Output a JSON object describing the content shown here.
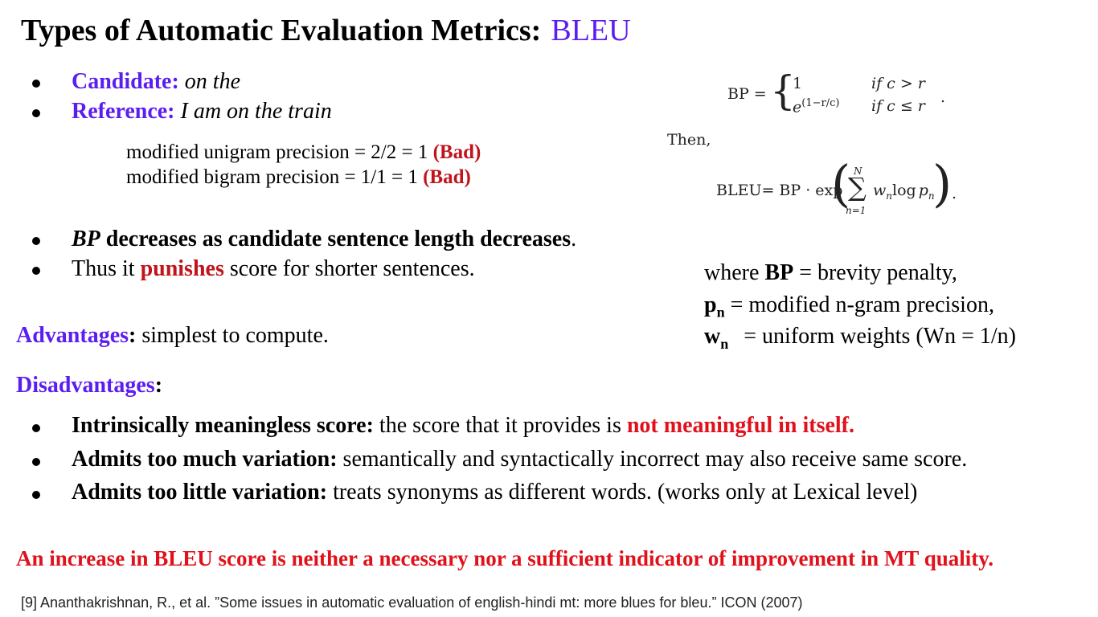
{
  "title": {
    "main": "Types of Automatic Evaluation Metrics:",
    "accent": "BLEU"
  },
  "examples": {
    "candidate_label": "Candidate:",
    "candidate_text": "on the",
    "reference_label": "Reference:",
    "reference_text": "I am on the train",
    "unigram": "modified unigram precision = 2/2 = 1",
    "unigram_tag": "(Bad)",
    "bigram": "modified bigram precision = 1/1 = 1",
    "bigram_tag": "(Bad)"
  },
  "bp_notes": {
    "line1_italic": "BP",
    "line1_bold": " decreases as candidate sentence length decreases",
    "line1_end": ".",
    "line2_pre": "Thus it ",
    "line2_red": "punishes",
    "line2_post": " score for shorter sentences."
  },
  "formula": {
    "bp_lhs": "BP =",
    "case1_val": "1",
    "case1_cond": "if c > r",
    "case2_val": "e",
    "case2_exp": "(1−r/c)",
    "case2_cond": "if c ≤ r",
    "period1": ".",
    "then": "Then,",
    "bleu_lhs": "BLEU= BP · exp",
    "sum_top": "N",
    "sum_sym": "∑",
    "sum_bottom": "n=1",
    "sum_term": "w",
    "sum_term_sub": "n",
    "log": "log",
    "p": "p",
    "p_sub": "n",
    "period2": "."
  },
  "legend": {
    "bp_pre": "where ",
    "bp_bold": "BP",
    "bp_post": " = brevity penalty,",
    "pn_bold": "p",
    "pn_sub": "n",
    "pn_post": " = modified n-gram precision,",
    "wn_bold": "w",
    "wn_sub": "n",
    "wn_post": " = uniform weights (Wn = 1/n)"
  },
  "advantages": {
    "label": "Advantages",
    "colon": ":",
    "text": " simplest to compute."
  },
  "disadvantages": {
    "label": "Disadvantages",
    "colon": ":",
    "items": [
      {
        "bold": "Intrinsically meaningless score:",
        "text": " the score that it provides is ",
        "red": "not meaningful in itself."
      },
      {
        "bold": "Admits too much variation:",
        "text": " semantically and syntactically incorrect may also receive same score.",
        "red": ""
      },
      {
        "bold": "Admits too little variation:",
        "text": " treats synonyms as different words. (works only at Lexical level)",
        "red": ""
      }
    ]
  },
  "conclusion": "An increase in BLEU score is neither a necessary nor a sufficient indicator of improvement in MT quality.",
  "citation": "[9] Ananthakrishnan, R., et al. ”Some issues in automatic evaluation of english-hindi mt: more blues for bleu.” ICON (2007)"
}
